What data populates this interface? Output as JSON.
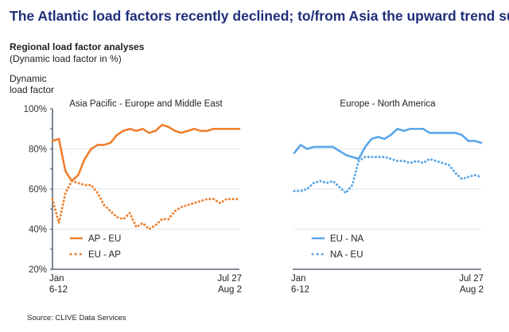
{
  "title": "The Atlantic load factors recently declined; to/from Asia the upward trend sustained",
  "subtitle": "Regional load factor analyses",
  "subtitle_note": "(Dynamic load factor in %)",
  "ylabel_line1": "Dynamic",
  "ylabel_line2": "load factor",
  "source": "Source: CLIVE Data Services",
  "chart_data": [
    {
      "type": "line",
      "title": "Asia Pacific - Europe and Middle East",
      "x_tick_labels": [
        [
          "Jan",
          "6-12"
        ],
        [
          "Jul 27",
          "Aug 2"
        ]
      ],
      "y_ticks": [
        "20%",
        "40%",
        "60%",
        "80%",
        "100%"
      ],
      "ylim": [
        20,
        100
      ],
      "grid": true,
      "legend": "bottom-left",
      "series": [
        {
          "name": "AP - EU",
          "style": "solid",
          "color": "#f07f2e",
          "values": [
            84,
            85,
            69,
            64,
            67,
            75,
            80,
            82,
            82,
            83,
            87,
            89,
            90,
            89,
            90,
            88,
            89,
            92,
            91,
            89,
            88,
            89,
            90,
            89,
            89,
            90,
            90,
            90,
            90,
            90
          ]
        },
        {
          "name": "EU - AP",
          "style": "dotted",
          "color": "#f07f2e",
          "values": [
            55,
            43,
            58,
            64,
            63,
            62,
            62,
            58,
            52,
            49,
            46,
            45,
            48,
            41,
            43,
            40,
            42,
            45,
            45,
            49,
            51,
            52,
            53,
            54,
            55,
            55,
            53,
            55,
            55,
            55
          ]
        }
      ]
    },
    {
      "type": "line",
      "title": "Europe - North America",
      "x_tick_labels": [
        [
          "Jan",
          "6-12"
        ],
        [
          "Jul 27",
          "Aug 2"
        ]
      ],
      "ylim": [
        20,
        100
      ],
      "grid": true,
      "legend": "bottom-left",
      "series": [
        {
          "name": "EU - NA",
          "style": "solid",
          "color": "#5aa6e8",
          "values": [
            78,
            82,
            80,
            81,
            81,
            81,
            81,
            79,
            77,
            76,
            75,
            81,
            85,
            86,
            85,
            87,
            90,
            89,
            90,
            90,
            90,
            88,
            88,
            88,
            88,
            88,
            87,
            84,
            84,
            83
          ]
        },
        {
          "name": "NA - EU",
          "style": "dotted",
          "color": "#5aa6e8",
          "values": [
            59,
            59,
            60,
            63,
            64,
            63,
            64,
            61,
            58,
            62,
            74,
            76,
            76,
            76,
            76,
            75,
            74,
            74,
            73,
            74,
            73,
            75,
            74,
            73,
            72,
            68,
            65,
            66,
            67,
            66
          ]
        }
      ]
    }
  ]
}
